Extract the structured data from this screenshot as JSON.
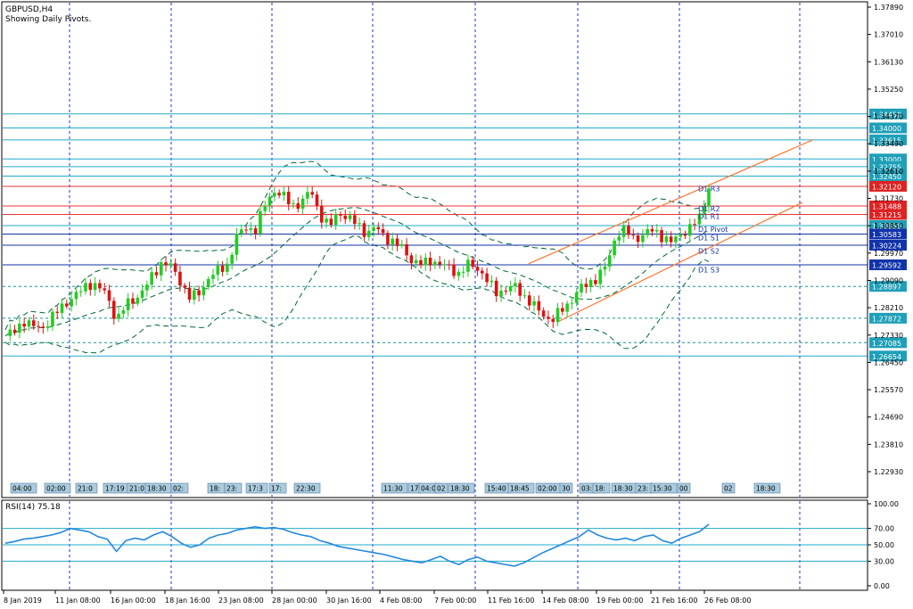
{
  "header": {
    "symbol": "GBPUSD,H4",
    "subtitle": "Showing Daily Pivots."
  },
  "colors": {
    "bull": "#22cc22",
    "bear": "#dd1111",
    "grid": "#2233cc",
    "pivot_line": "#ee3333",
    "level_line": "#22aacc",
    "channel": "#ff7733",
    "bands": "#006633",
    "rsi": "#2288dd",
    "label_box": "#22aacc",
    "time_box": "#aaccdd"
  },
  "chart_data": [
    {
      "type": "candlestick",
      "name": "price",
      "symbol": "GBPUSD",
      "timeframe": "H4",
      "ylim": [
        1.22,
        1.38
      ],
      "y_ticks": [
        "1.37890",
        "1.37010",
        "1.36130",
        "1.35250",
        "1.34370",
        "1.33490",
        "1.32610",
        "1.31730",
        "1.30850",
        "1.29970",
        "1.29090",
        "1.28210",
        "1.27330",
        "1.26450",
        "1.25570",
        "1.24690",
        "1.23810",
        "1.22930"
      ],
      "x_ticks": [
        "8 Jan 2019",
        "11 Jan 08:00",
        "16 Jan 00:00",
        "18 Jan 16:00",
        "23 Jan 08:00",
        "28 Jan 00:00",
        "30 Jan 16:00",
        "4 Feb 08:00",
        "7 Feb 00:00",
        "11 Feb 16:00",
        "14 Feb 08:00",
        "19 Feb 00:00",
        "21 Feb 16:00",
        "26 Feb 08:00"
      ],
      "close_path": [
        1.273,
        1.2745,
        1.278,
        1.276,
        1.2755,
        1.279,
        1.282,
        1.285,
        1.287,
        1.29,
        1.289,
        1.286,
        1.278,
        1.283,
        1.285,
        1.288,
        1.293,
        1.297,
        1.295,
        1.29,
        1.285,
        1.287,
        1.292,
        1.294,
        1.296,
        1.305,
        1.308,
        1.307,
        1.315,
        1.32,
        1.318,
        1.315,
        1.316,
        1.32,
        1.312,
        1.308,
        1.313,
        1.311,
        1.309,
        1.306,
        1.308,
        1.305,
        1.303,
        1.301,
        1.297,
        1.296,
        1.2975,
        1.296,
        1.295,
        1.293,
        1.296,
        1.295,
        1.291,
        1.287,
        1.288,
        1.289,
        1.286,
        1.283,
        1.28,
        1.278,
        1.281,
        1.284,
        1.288,
        1.29,
        1.292,
        1.296,
        1.306,
        1.307,
        1.304,
        1.306,
        1.307,
        1.305,
        1.303,
        1.306,
        1.308,
        1.311,
        1.321
      ],
      "horizontal_levels": [
        {
          "label": "1.34450",
          "value": 1.3445,
          "kind": "level"
        },
        {
          "label": "1.34000",
          "value": 1.34,
          "kind": "level"
        },
        {
          "label": "1.33615",
          "value": 1.33615,
          "kind": "level"
        },
        {
          "label": "1.33000",
          "value": 1.33,
          "kind": "level"
        },
        {
          "label": "1.32755",
          "value": 1.32755,
          "kind": "level"
        },
        {
          "label": "1.32450",
          "value": 1.3245,
          "kind": "level"
        },
        {
          "label": "1.32120",
          "value": 1.3212,
          "kind": "pivot"
        },
        {
          "label": "1.31488",
          "value": 1.31488,
          "kind": "pivot"
        },
        {
          "label": "1.31215",
          "value": 1.31215,
          "kind": "pivot"
        },
        {
          "label": "1.30856",
          "value": 1.30856,
          "kind": "level"
        },
        {
          "label": "1.30583",
          "value": 1.30583,
          "kind": "pivot_blue"
        },
        {
          "label": "1.30224",
          "value": 1.30224,
          "kind": "pivot_blue"
        },
        {
          "label": "1.29592",
          "value": 1.29592,
          "kind": "pivot_blue"
        },
        {
          "label": "1.28897",
          "value": 1.28897,
          "kind": "dotted"
        },
        {
          "label": "1.27872",
          "value": 1.27872,
          "kind": "dotted"
        },
        {
          "label": "1.27085",
          "value": 1.27085,
          "kind": "dotted"
        },
        {
          "label": "1.26654",
          "value": 1.26654,
          "kind": "level"
        }
      ],
      "pivot_labels": [
        {
          "label": "D1 R3",
          "value": 1.3205
        },
        {
          "label": "D1 R2",
          "value": 1.314
        },
        {
          "label": "D1 R1",
          "value": 1.3115
        },
        {
          "label": "D1 Pivot",
          "value": 1.3074
        },
        {
          "label": "D1 S1",
          "value": 1.3047
        },
        {
          "label": "D1 S2",
          "value": 1.3004
        },
        {
          "label": "D1 S3",
          "value": 1.2944
        }
      ],
      "time_labels": [
        "04:00",
        "02:00",
        "21:0",
        "17:19",
        "21:0",
        "18:30",
        "02:",
        "18:",
        "23:",
        "17:3",
        "17:",
        "22:30",
        "11:30",
        "17",
        "04:0",
        "02",
        "18:30",
        "15:40",
        "18:45",
        "02:00",
        "30",
        "03:",
        "18:",
        "18:30",
        "23:",
        "15:30",
        "00",
        "02",
        "18:30"
      ]
    },
    {
      "type": "line",
      "name": "RSI",
      "title": "RSI(14) 75.18",
      "ylim": [
        0,
        100
      ],
      "y_ticks": [
        "100.00",
        "70.00",
        "50.00",
        "30.00",
        "0.00"
      ],
      "levels": [
        70,
        50,
        30
      ],
      "values": [
        52,
        54,
        57,
        58,
        60,
        62,
        65,
        70,
        68,
        66,
        60,
        57,
        42,
        55,
        58,
        56,
        62,
        66,
        60,
        52,
        47,
        50,
        58,
        62,
        64,
        68,
        70,
        72,
        70,
        71,
        69,
        65,
        62,
        60,
        55,
        52,
        48,
        46,
        44,
        42,
        40,
        38,
        35,
        32,
        30,
        28,
        32,
        36,
        30,
        26,
        32,
        35,
        30,
        28,
        26,
        24,
        28,
        34,
        40,
        45,
        50,
        55,
        60,
        68,
        62,
        58,
        56,
        58,
        55,
        60,
        62,
        55,
        52,
        58,
        62,
        66,
        75
      ]
    }
  ]
}
